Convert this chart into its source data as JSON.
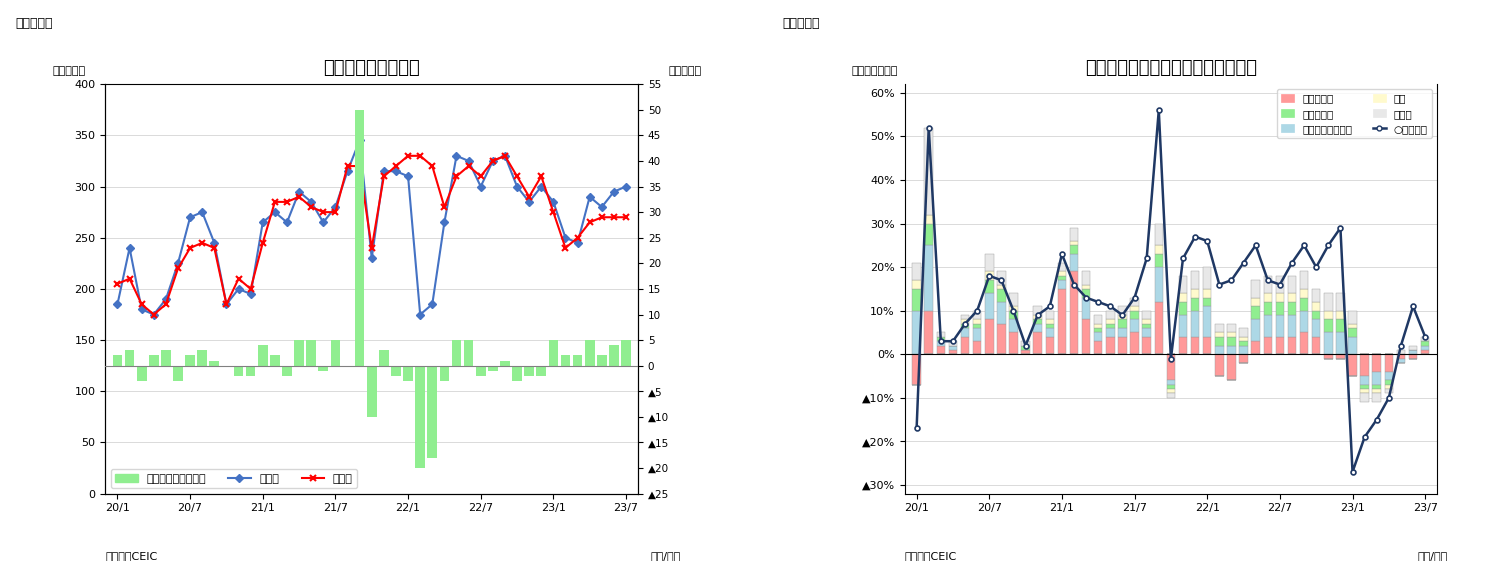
{
  "chart3": {
    "title": "ベトナムの貳易収支",
    "subtitle_left": "（図表３）",
    "ylabel_left": "（億ドル）",
    "ylabel_right": "（億ドル）",
    "source": "（資料）CEIC",
    "xlabel": "（年/月）",
    "ylim_left": [
      0,
      400
    ],
    "ylim_right": [
      -25,
      55
    ],
    "yticks_left": [
      0,
      50,
      100,
      150,
      200,
      250,
      300,
      350,
      400
    ],
    "xtick_labels": [
      "20/1",
      "20/7",
      "21/1",
      "21/7",
      "22/1",
      "22/7",
      "23/1",
      "23/7"
    ],
    "xtick_pos": [
      0,
      6,
      12,
      18,
      24,
      30,
      36,
      42
    ],
    "export_vals": [
      185,
      240,
      180,
      175,
      190,
      225,
      270,
      275,
      245,
      185,
      200,
      195,
      265,
      275,
      265,
      295,
      285,
      265,
      280,
      315,
      345,
      230,
      315,
      315,
      310,
      175,
      185,
      265,
      330,
      325,
      300,
      325,
      330,
      300,
      285,
      300,
      285,
      250,
      245,
      290,
      280,
      295,
      300
    ],
    "import_vals": [
      205,
      210,
      185,
      175,
      185,
      220,
      240,
      245,
      240,
      185,
      210,
      200,
      245,
      285,
      285,
      290,
      280,
      275,
      275,
      320,
      320,
      240,
      310,
      320,
      330,
      330,
      320,
      280,
      310,
      320,
      310,
      325,
      330,
      310,
      290,
      310,
      275,
      240,
      250,
      265,
      270,
      270,
      270
    ],
    "trade_balance": [
      2,
      3,
      -3,
      2,
      3,
      -3,
      2,
      3,
      1,
      0,
      -2,
      -2,
      4,
      2,
      -2,
      5,
      5,
      -1,
      5,
      0,
      50,
      -10,
      3,
      -2,
      -3,
      -20,
      -18,
      -3,
      5,
      5,
      -2,
      -1,
      1,
      -3,
      -2,
      -2,
      5,
      2,
      2,
      5,
      2,
      4,
      5
    ],
    "legend_bar": "貳易収支（右目盛）",
    "legend_export": "輸出額",
    "legend_import": "輸入額",
    "bar_color": "#90EE90",
    "export_color": "#4472C4",
    "import_color": "#FF0000"
  },
  "chart4": {
    "title": "ベトナム　輸出の伸び率（品目別）",
    "subtitle_left": "（図表４）",
    "ylabel_left": "（前年同月比）",
    "source": "（資料）CEIC",
    "xlabel": "（年/月）",
    "ylim": [
      -0.32,
      0.62
    ],
    "ytick_vals": [
      0.6,
      0.5,
      0.4,
      0.3,
      0.2,
      0.1,
      0.0,
      -0.1,
      -0.2,
      -0.3
    ],
    "ytick_labels": [
      "60%",
      "50%",
      "40%",
      "30%",
      "20%",
      "10%",
      "0%",
      "▲10%",
      "▲20%",
      "▲30%"
    ],
    "xtick_labels": [
      "20/1",
      "20/7",
      "21/1",
      "21/7",
      "22/1",
      "22/7",
      "23/1",
      "23/7"
    ],
    "xtick_pos": [
      0,
      6,
      12,
      18,
      24,
      30,
      36,
      42
    ],
    "n_bars": 43,
    "phone_parts": [
      -0.07,
      0.1,
      0.02,
      0.01,
      0.04,
      0.03,
      0.08,
      0.07,
      0.05,
      0.01,
      0.05,
      0.04,
      0.15,
      0.19,
      0.08,
      0.03,
      0.04,
      0.04,
      0.05,
      0.04,
      0.12,
      -0.06,
      0.04,
      0.04,
      0.04,
      -0.05,
      -0.06,
      -0.02,
      0.03,
      0.04,
      0.04,
      0.04,
      0.05,
      0.04,
      -0.01,
      -0.01,
      -0.05,
      -0.05,
      -0.04,
      -0.04,
      -0.01,
      -0.01,
      0.01
    ],
    "electric_parts": [
      0.1,
      0.15,
      0.01,
      0.01,
      0.02,
      0.03,
      0.06,
      0.05,
      0.03,
      0.0,
      0.02,
      0.02,
      0.02,
      0.04,
      0.05,
      0.02,
      0.02,
      0.02,
      0.03,
      0.02,
      0.08,
      -0.01,
      0.05,
      0.06,
      0.07,
      0.02,
      0.02,
      0.02,
      0.05,
      0.05,
      0.05,
      0.05,
      0.05,
      0.04,
      0.05,
      0.05,
      0.04,
      -0.02,
      -0.03,
      -0.02,
      -0.01,
      0.01,
      0.01
    ],
    "textile": [
      0.05,
      0.05,
      0.01,
      0.0,
      0.01,
      0.01,
      0.03,
      0.03,
      0.02,
      0.01,
      0.01,
      0.01,
      0.01,
      0.02,
      0.02,
      0.01,
      0.01,
      0.02,
      0.02,
      0.01,
      0.03,
      -0.01,
      0.03,
      0.03,
      0.02,
      0.02,
      0.02,
      0.01,
      0.03,
      0.03,
      0.03,
      0.03,
      0.03,
      0.02,
      0.03,
      0.03,
      0.02,
      -0.01,
      -0.01,
      -0.01,
      0.0,
      0.0,
      0.01
    ],
    "footwear": [
      0.02,
      0.02,
      0.0,
      0.0,
      0.01,
      0.01,
      0.02,
      0.01,
      0.01,
      0.0,
      0.01,
      0.01,
      0.01,
      0.01,
      0.01,
      0.01,
      0.01,
      0.01,
      0.01,
      0.01,
      0.02,
      -0.01,
      0.02,
      0.02,
      0.02,
      0.01,
      0.01,
      0.01,
      0.02,
      0.02,
      0.02,
      0.02,
      0.02,
      0.02,
      0.02,
      0.02,
      0.01,
      -0.01,
      -0.01,
      -0.01,
      0.0,
      0.0,
      0.0
    ],
    "other": [
      0.04,
      0.2,
      0.01,
      0.01,
      0.01,
      0.02,
      0.04,
      0.03,
      0.03,
      0.01,
      0.02,
      0.02,
      0.02,
      0.03,
      0.03,
      0.02,
      0.02,
      0.02,
      0.02,
      0.02,
      0.05,
      -0.01,
      0.04,
      0.04,
      0.05,
      0.02,
      0.02,
      0.02,
      0.04,
      0.04,
      0.04,
      0.04,
      0.04,
      0.03,
      0.04,
      0.04,
      0.03,
      -0.02,
      -0.02,
      -0.01,
      0.01,
      0.01,
      0.01
    ],
    "total_line": [
      -0.17,
      0.52,
      0.03,
      0.03,
      0.07,
      0.1,
      0.18,
      0.17,
      0.1,
      0.02,
      0.09,
      0.11,
      0.23,
      0.16,
      0.13,
      0.12,
      0.11,
      0.09,
      0.13,
      0.22,
      0.56,
      -0.01,
      0.22,
      0.27,
      0.26,
      0.16,
      0.17,
      0.21,
      0.25,
      0.17,
      0.16,
      0.21,
      0.25,
      0.2,
      0.25,
      0.29,
      -0.27,
      -0.19,
      -0.15,
      -0.1,
      0.02,
      0.11,
      0.04
    ],
    "phone_color": "#FF9999",
    "electric_color": "#ADD8E6",
    "textile_color": "#90EE90",
    "footwear_color": "#FFFACD",
    "other_color": "#E8E8E8",
    "total_color": "#1F3864",
    "bar_edge_color": "#999999",
    "legend_phone": "電話・部品",
    "legend_electric": "電気製品・同部品",
    "legend_textile": "織物・衣類",
    "legend_footwear": "履物",
    "legend_other": "その他",
    "legend_total": "○輸出合計"
  }
}
